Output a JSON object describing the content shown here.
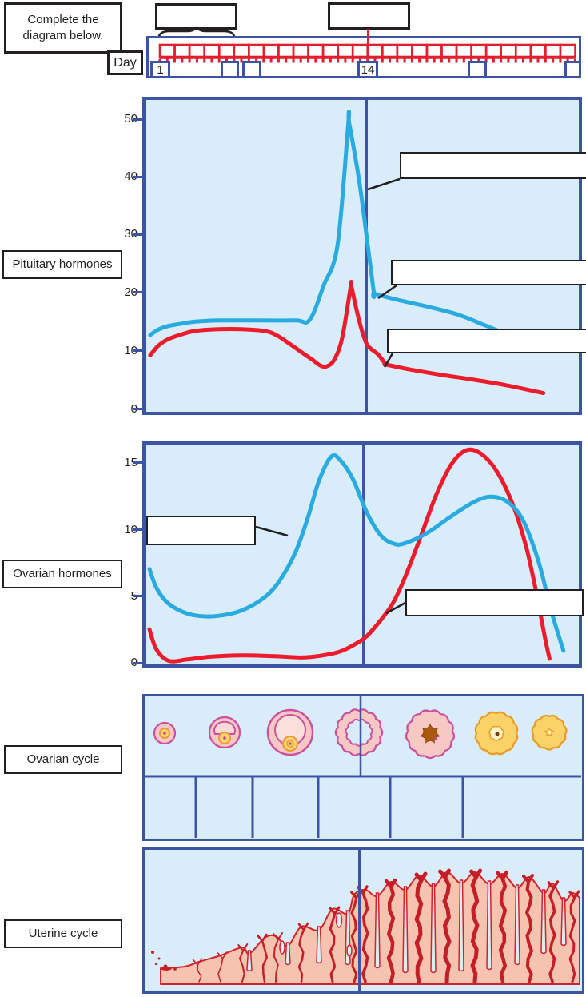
{
  "instruction": "Complete the diagram below.",
  "timeline": {
    "day_label": "Day",
    "days_total": 28,
    "top_answer_boxes": [
      {
        "label": ""
      },
      {
        "label": ""
      }
    ],
    "day_cells": [
      {
        "label": "1"
      },
      {
        "label": ""
      },
      {
        "label": ""
      },
      {
        "label": "14"
      },
      {
        "label": ""
      },
      {
        "label": ""
      }
    ]
  },
  "row_labels": {
    "pituitary": "Pituitary hormones",
    "ovarian_hormones": "Ovarian hormones",
    "ovarian_cycle": "Ovarian cycle",
    "uterine_cycle": "Uterine cycle"
  },
  "colors": {
    "panel_border_blue": "#3C54A4",
    "panel_background": "#D9ECF9",
    "curve_blue": "#29ABE2",
    "curve_red": "#EC1C2D",
    "ruler_red": "#E31E2D",
    "ink": "#231F20",
    "follicle_pink": "#F8C9C4",
    "follicle_outline": "#CC4FA0",
    "corpus_luteum_yellow": "#FAD267",
    "corpus_luteum_outline": "#EB9B28",
    "endometrium_fill": "#F6C3B1",
    "endometrium_outline": "#D2232A",
    "vessel_red": "#C41E26"
  },
  "chart_data": [
    {
      "type": "line",
      "panel": "pituitary-hormones",
      "title": "Pituitary hormones",
      "xlabel": "Day",
      "x_range": [
        0,
        28
      ],
      "y_axis": {
        "ticks": [
          0,
          10,
          20,
          30,
          40,
          50
        ],
        "range": [
          0,
          52
        ]
      },
      "vertical_marker_day": 14,
      "grid": false,
      "legend": "none (labels are blank fill-in callout boxes)",
      "series": [
        {
          "name": "blue-curve",
          "color": "#29ABE2",
          "points": [
            [
              0.1,
              13.5
            ],
            [
              0.6,
              14.4
            ],
            [
              1.2,
              15.0
            ],
            [
              2,
              15.4
            ],
            [
              3,
              15.8
            ],
            [
              4.5,
              16
            ],
            [
              7,
              16
            ],
            [
              9.5,
              16
            ],
            [
              10.4,
              16.1
            ],
            [
              11.3,
              22
            ],
            [
              12.2,
              29
            ],
            [
              12.9,
              50
            ],
            [
              12.95,
              50
            ],
            [
              13.6,
              40
            ],
            [
              14.1,
              30
            ],
            [
              14.55,
              20.7
            ],
            [
              14.6,
              20.6
            ],
            [
              16,
              19.6
            ],
            [
              18,
              18.4
            ],
            [
              20,
              17
            ],
            [
              21.7,
              15.2
            ],
            [
              22.6,
              14.2
            ]
          ]
        },
        {
          "name": "red-curve",
          "color": "#EC1C2D",
          "points": [
            [
              0.1,
              10
            ],
            [
              0.6,
              11.6
            ],
            [
              1.2,
              12.7
            ],
            [
              2,
              13.5
            ],
            [
              3,
              14.2
            ],
            [
              4.5,
              14.5
            ],
            [
              6,
              14.5
            ],
            [
              7.5,
              14.2
            ],
            [
              8.3,
              13.4
            ],
            [
              9.2,
              11.8
            ],
            [
              10,
              10.3
            ],
            [
              10.6,
              9.2
            ],
            [
              11.05,
              8.3
            ],
            [
              11.5,
              8.1
            ],
            [
              12,
              9.3
            ],
            [
              12.5,
              13
            ],
            [
              13.05,
              21.8
            ],
            [
              13.1,
              21.8
            ],
            [
              13.5,
              17
            ],
            [
              13.9,
              13.2
            ],
            [
              14.2,
              11.5
            ],
            [
              14.8,
              10.2
            ],
            [
              15.3,
              8.5
            ],
            [
              15.35,
              8.4
            ],
            [
              17,
              7.5
            ],
            [
              19,
              6.6
            ],
            [
              21,
              5.8
            ],
            [
              23,
              4.9
            ],
            [
              25.5,
              3.5
            ]
          ]
        }
      ],
      "callout_boxes": [
        {
          "label": ""
        },
        {
          "label": ""
        },
        {
          "label": ""
        }
      ]
    },
    {
      "type": "line",
      "panel": "ovarian-hormones",
      "title": "Ovarian hormones",
      "xlabel": "Day",
      "x_range": [
        0,
        28
      ],
      "y_axis": {
        "ticks": [
          0,
          5,
          10,
          15
        ],
        "range": [
          0,
          16.6
        ]
      },
      "vertical_marker_day": 14,
      "grid": false,
      "legend": "none (labels are blank fill-in callout boxes)",
      "series": [
        {
          "name": "blue-curve",
          "color": "#29ABE2",
          "points": [
            [
              0.05,
              7.3
            ],
            [
              0.5,
              5.9
            ],
            [
              1.2,
              4.8
            ],
            [
              2.2,
              4.1
            ],
            [
              3.2,
              3.8
            ],
            [
              4.5,
              3.8
            ],
            [
              6,
              4.2
            ],
            [
              7.5,
              5.2
            ],
            [
              8.5,
              6.5
            ],
            [
              9.5,
              8.6
            ],
            [
              10.3,
              11.2
            ],
            [
              11,
              13.9
            ],
            [
              11.8,
              15.7
            ],
            [
              12.4,
              15.4
            ],
            [
              13.2,
              14
            ],
            [
              14.1,
              11.5
            ],
            [
              15,
              9.8
            ],
            [
              15.8,
              9.2
            ],
            [
              16.5,
              9.2
            ],
            [
              18,
              10
            ],
            [
              19.5,
              11.2
            ],
            [
              21,
              12.3
            ],
            [
              22.1,
              12.7
            ],
            [
              23.2,
              12.3
            ],
            [
              24.2,
              10.9
            ],
            [
              25.2,
              7.8
            ],
            [
              26,
              4.2
            ],
            [
              26.8,
              1.2
            ]
          ]
        },
        {
          "name": "red-curve",
          "color": "#EC1C2D",
          "points": [
            [
              0.05,
              2.8
            ],
            [
              0.5,
              1.3
            ],
            [
              1.3,
              0.45
            ],
            [
              2.5,
              0.55
            ],
            [
              4,
              0.75
            ],
            [
              6,
              0.85
            ],
            [
              8,
              0.8
            ],
            [
              10,
              0.7
            ],
            [
              11.5,
              0.9
            ],
            [
              12.5,
              1.2
            ],
            [
              13.5,
              1.8
            ],
            [
              14.1,
              2.3
            ],
            [
              15,
              3.5
            ],
            [
              15.8,
              4.8
            ],
            [
              16.6,
              6.8
            ],
            [
              17.6,
              9.8
            ],
            [
              18.6,
              12.9
            ],
            [
              19.6,
              15.2
            ],
            [
              20.6,
              16.2
            ],
            [
              21.6,
              15.8
            ],
            [
              22.6,
              14.4
            ],
            [
              23.6,
              11.9
            ],
            [
              24.4,
              8.9
            ],
            [
              25,
              5.8
            ],
            [
              25.6,
              2.2
            ],
            [
              25.9,
              0.6
            ]
          ]
        }
      ],
      "callout_boxes": [
        {
          "label": ""
        },
        {
          "label": ""
        }
      ]
    }
  ],
  "ovarian_cycle": {
    "stage_illustrations": [
      "primary-follicle",
      "secondary-follicle",
      "mature-follicle",
      "ovulation-ruptured-follicle",
      "early-corpus-luteum",
      "corpus-luteum",
      "degenerating-corpus-luteum"
    ],
    "answer_cells": [
      {
        "label": ""
      },
      {
        "label": ""
      },
      {
        "label": ""
      },
      {
        "label": ""
      },
      {
        "label": ""
      },
      {
        "label": ""
      }
    ]
  },
  "uterine_cycle": {
    "illustration": "endometrium-lining-thickness-with-blood-vessels"
  }
}
